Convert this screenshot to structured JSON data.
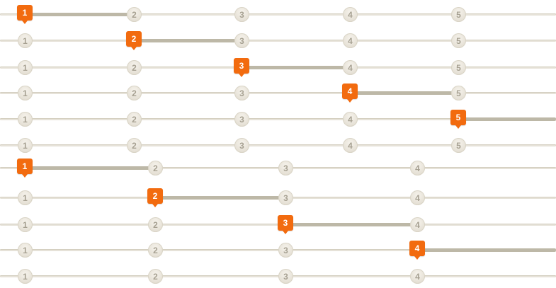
{
  "group5": {
    "labels": [
      "1",
      "2",
      "3",
      "4",
      "5"
    ],
    "rows": [
      {
        "active": 1
      },
      {
        "active": 2
      },
      {
        "active": 3
      },
      {
        "active": 4
      },
      {
        "active": 5
      },
      {
        "active": 0
      }
    ]
  },
  "group4": {
    "labels": [
      "1",
      "2",
      "3",
      "4"
    ],
    "rows": [
      {
        "active": 1
      },
      {
        "active": 2
      },
      {
        "active": 3
      },
      {
        "active": 4
      },
      {
        "active": 0
      }
    ]
  },
  "colors": {
    "marker": "#f26b0f",
    "track": "#e6e2d8",
    "progress": "#bdb8a7",
    "node_text": "#a6a091"
  }
}
